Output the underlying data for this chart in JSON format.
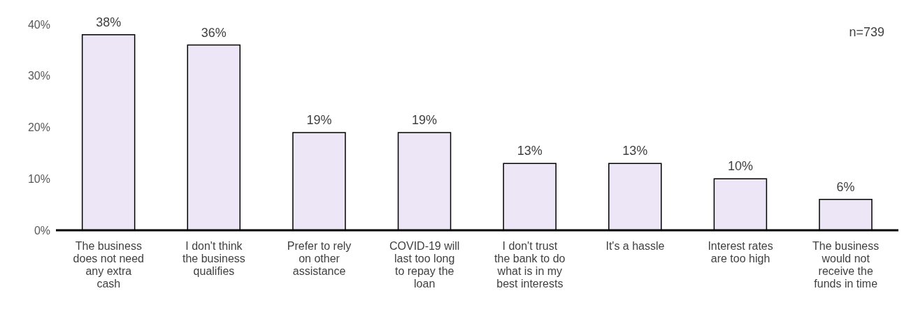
{
  "chart_data": {
    "type": "bar",
    "categories": [
      "The business does not need any extra cash",
      "I don't think the business qualifies",
      "Prefer to rely on other assistance",
      "COVID-19 will last too long to repay the loan",
      "I don't trust the bank to do what is in my best interests",
      "It's a hassle",
      "Interest rates are too high",
      "The business would not receive the funds in time"
    ],
    "values": [
      38,
      36,
      19,
      19,
      13,
      13,
      10,
      6
    ],
    "value_labels": [
      "38%",
      "36%",
      "19%",
      "19%",
      "13%",
      "13%",
      "10%",
      "6%"
    ],
    "color": "#ece6f6",
    "ylim": [
      0,
      40
    ],
    "yticks": [
      {
        "value": 0,
        "label": "0%"
      },
      {
        "value": 10,
        "label": "10%"
      },
      {
        "value": 20,
        "label": "20%"
      },
      {
        "value": 30,
        "label": "30%"
      },
      {
        "value": 40,
        "label": "40%"
      }
    ],
    "annotations": [
      "n=739"
    ]
  }
}
